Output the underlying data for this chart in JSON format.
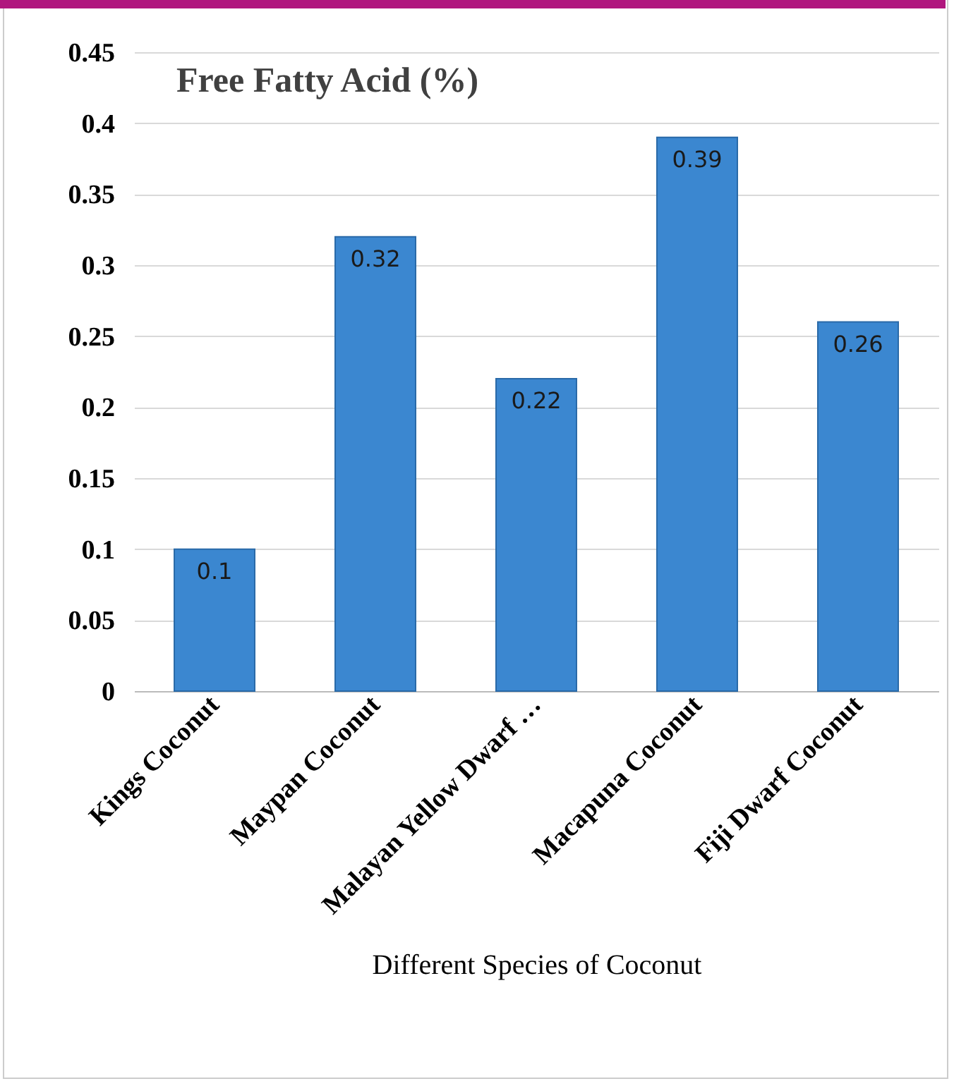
{
  "chart_data": {
    "type": "bar",
    "title": "Free Fatty Acid (%)",
    "xlabel": "Different Species of Coconut",
    "categories": [
      "Kings Coconut",
      "Maypan Coconut",
      "Malayan Yellow Dwarf …",
      "Macapuna Coconut",
      "Fiji Dwarf Coconut"
    ],
    "values": [
      0.1,
      0.32,
      0.22,
      0.39,
      0.26
    ],
    "color": "#3b87d0",
    "ylim": [
      0,
      0.45
    ],
    "yticks": [
      0,
      0.05,
      0.1,
      0.15,
      0.2,
      0.25,
      0.3,
      0.35,
      0.4,
      0.45
    ],
    "grid": "y",
    "data_labels": true
  }
}
